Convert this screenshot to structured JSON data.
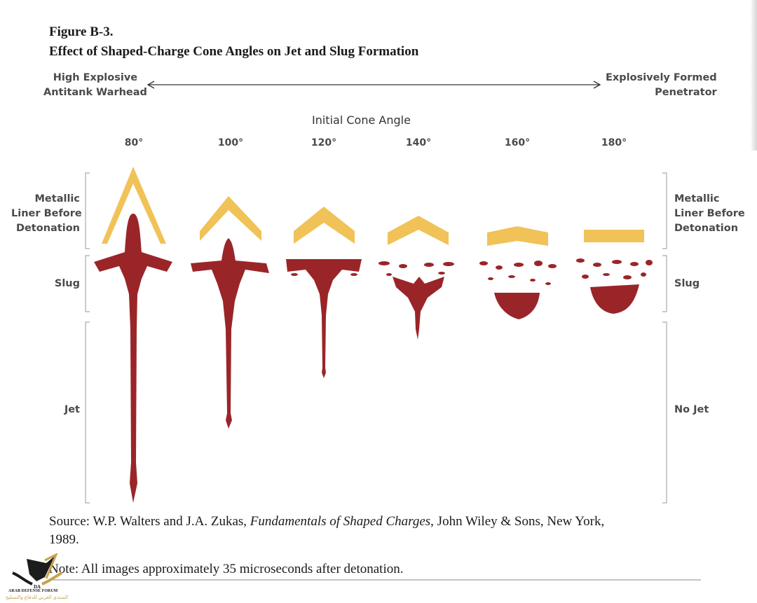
{
  "figure_label": "Figure B-3.",
  "title": "Effect of Shaped-Charge Cone Angles on Jet and Slug Formation",
  "spectrum": {
    "left_label": [
      "High Explosive",
      "Antitank Warhead"
    ],
    "right_label": [
      "Explosively Formed",
      "Penetrator"
    ]
  },
  "axis_title": "Initial Cone Angle",
  "angles": [
    "80°",
    "100°",
    "120°",
    "140°",
    "160°",
    "180°"
  ],
  "row_labels_left": {
    "liner": [
      "Metallic",
      "Liner Before",
      "Detonation"
    ],
    "slug": "Slug",
    "jet": "Jet"
  },
  "row_labels_right": {
    "liner": [
      "Metallic",
      "Liner Before",
      "Detonation"
    ],
    "slug": "Slug",
    "jet": "No Jet"
  },
  "colors": {
    "liner": "#f0c257",
    "jet_slug": "#9a2528",
    "label": "#4a4a4a"
  },
  "source": {
    "prefix": "Source: W.P. Walters and J.A. Zukas, ",
    "book": "Fundamentals of Shaped Charges",
    "suffix": ", John Wiley & Sons, New York,",
    "year": "1989."
  },
  "note": "Note: All images approximately 35 microseconds after detonation.",
  "watermark": {
    "text": "ARAB DEFENSE FORUM",
    "arabic": "المنتدى العربي للدفاع والتسليح"
  }
}
